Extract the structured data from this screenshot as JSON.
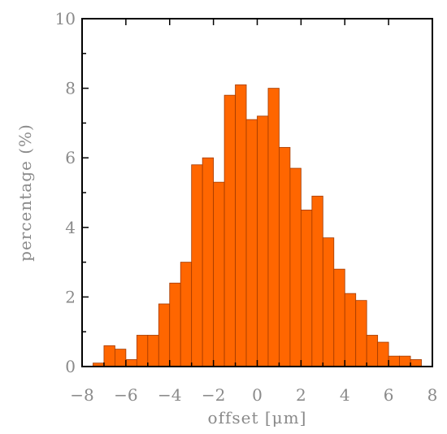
{
  "chart_data": {
    "type": "bar",
    "xlabel": "offset [μm]",
    "ylabel": "percentage (%)",
    "xlim": [
      -8,
      8
    ],
    "ylim": [
      0,
      10
    ],
    "x_ticks": [
      -8,
      -6,
      -4,
      -2,
      0,
      2,
      4,
      6,
      8
    ],
    "x_tick_labels": [
      "−8",
      "−6",
      "−4",
      "−2",
      "0",
      "2",
      "4",
      "6",
      "8"
    ],
    "y_ticks": [
      0,
      2,
      4,
      6,
      8,
      10
    ],
    "y_tick_labels": [
      "0",
      "2",
      "4",
      "6",
      "8",
      "10"
    ],
    "bin_width": 0.5,
    "bin_starts": [
      -7.5,
      -7.0,
      -6.5,
      -6.0,
      -5.5,
      -5.0,
      -4.5,
      -4.0,
      -3.5,
      -3.0,
      -2.5,
      -2.0,
      -1.5,
      -1.0,
      -0.5,
      0.0,
      0.5,
      1.0,
      1.5,
      2.0,
      2.5,
      3.0,
      3.5,
      4.0,
      4.5,
      5.0,
      5.5,
      6.0,
      6.5,
      7.0
    ],
    "values": [
      0.1,
      0.6,
      0.5,
      0.2,
      0.9,
      0.9,
      1.8,
      2.4,
      3.0,
      5.8,
      6.0,
      5.3,
      7.8,
      8.1,
      7.1,
      7.2,
      8.0,
      6.3,
      5.7,
      4.5,
      4.9,
      3.7,
      2.8,
      2.1,
      1.9,
      0.9,
      0.7,
      0.3,
      0.3,
      0.2
    ],
    "grid": false,
    "colors": {
      "bar_fill": "#ff6600",
      "bar_edge": "#a23a00",
      "label": "#8a8a8a"
    }
  }
}
